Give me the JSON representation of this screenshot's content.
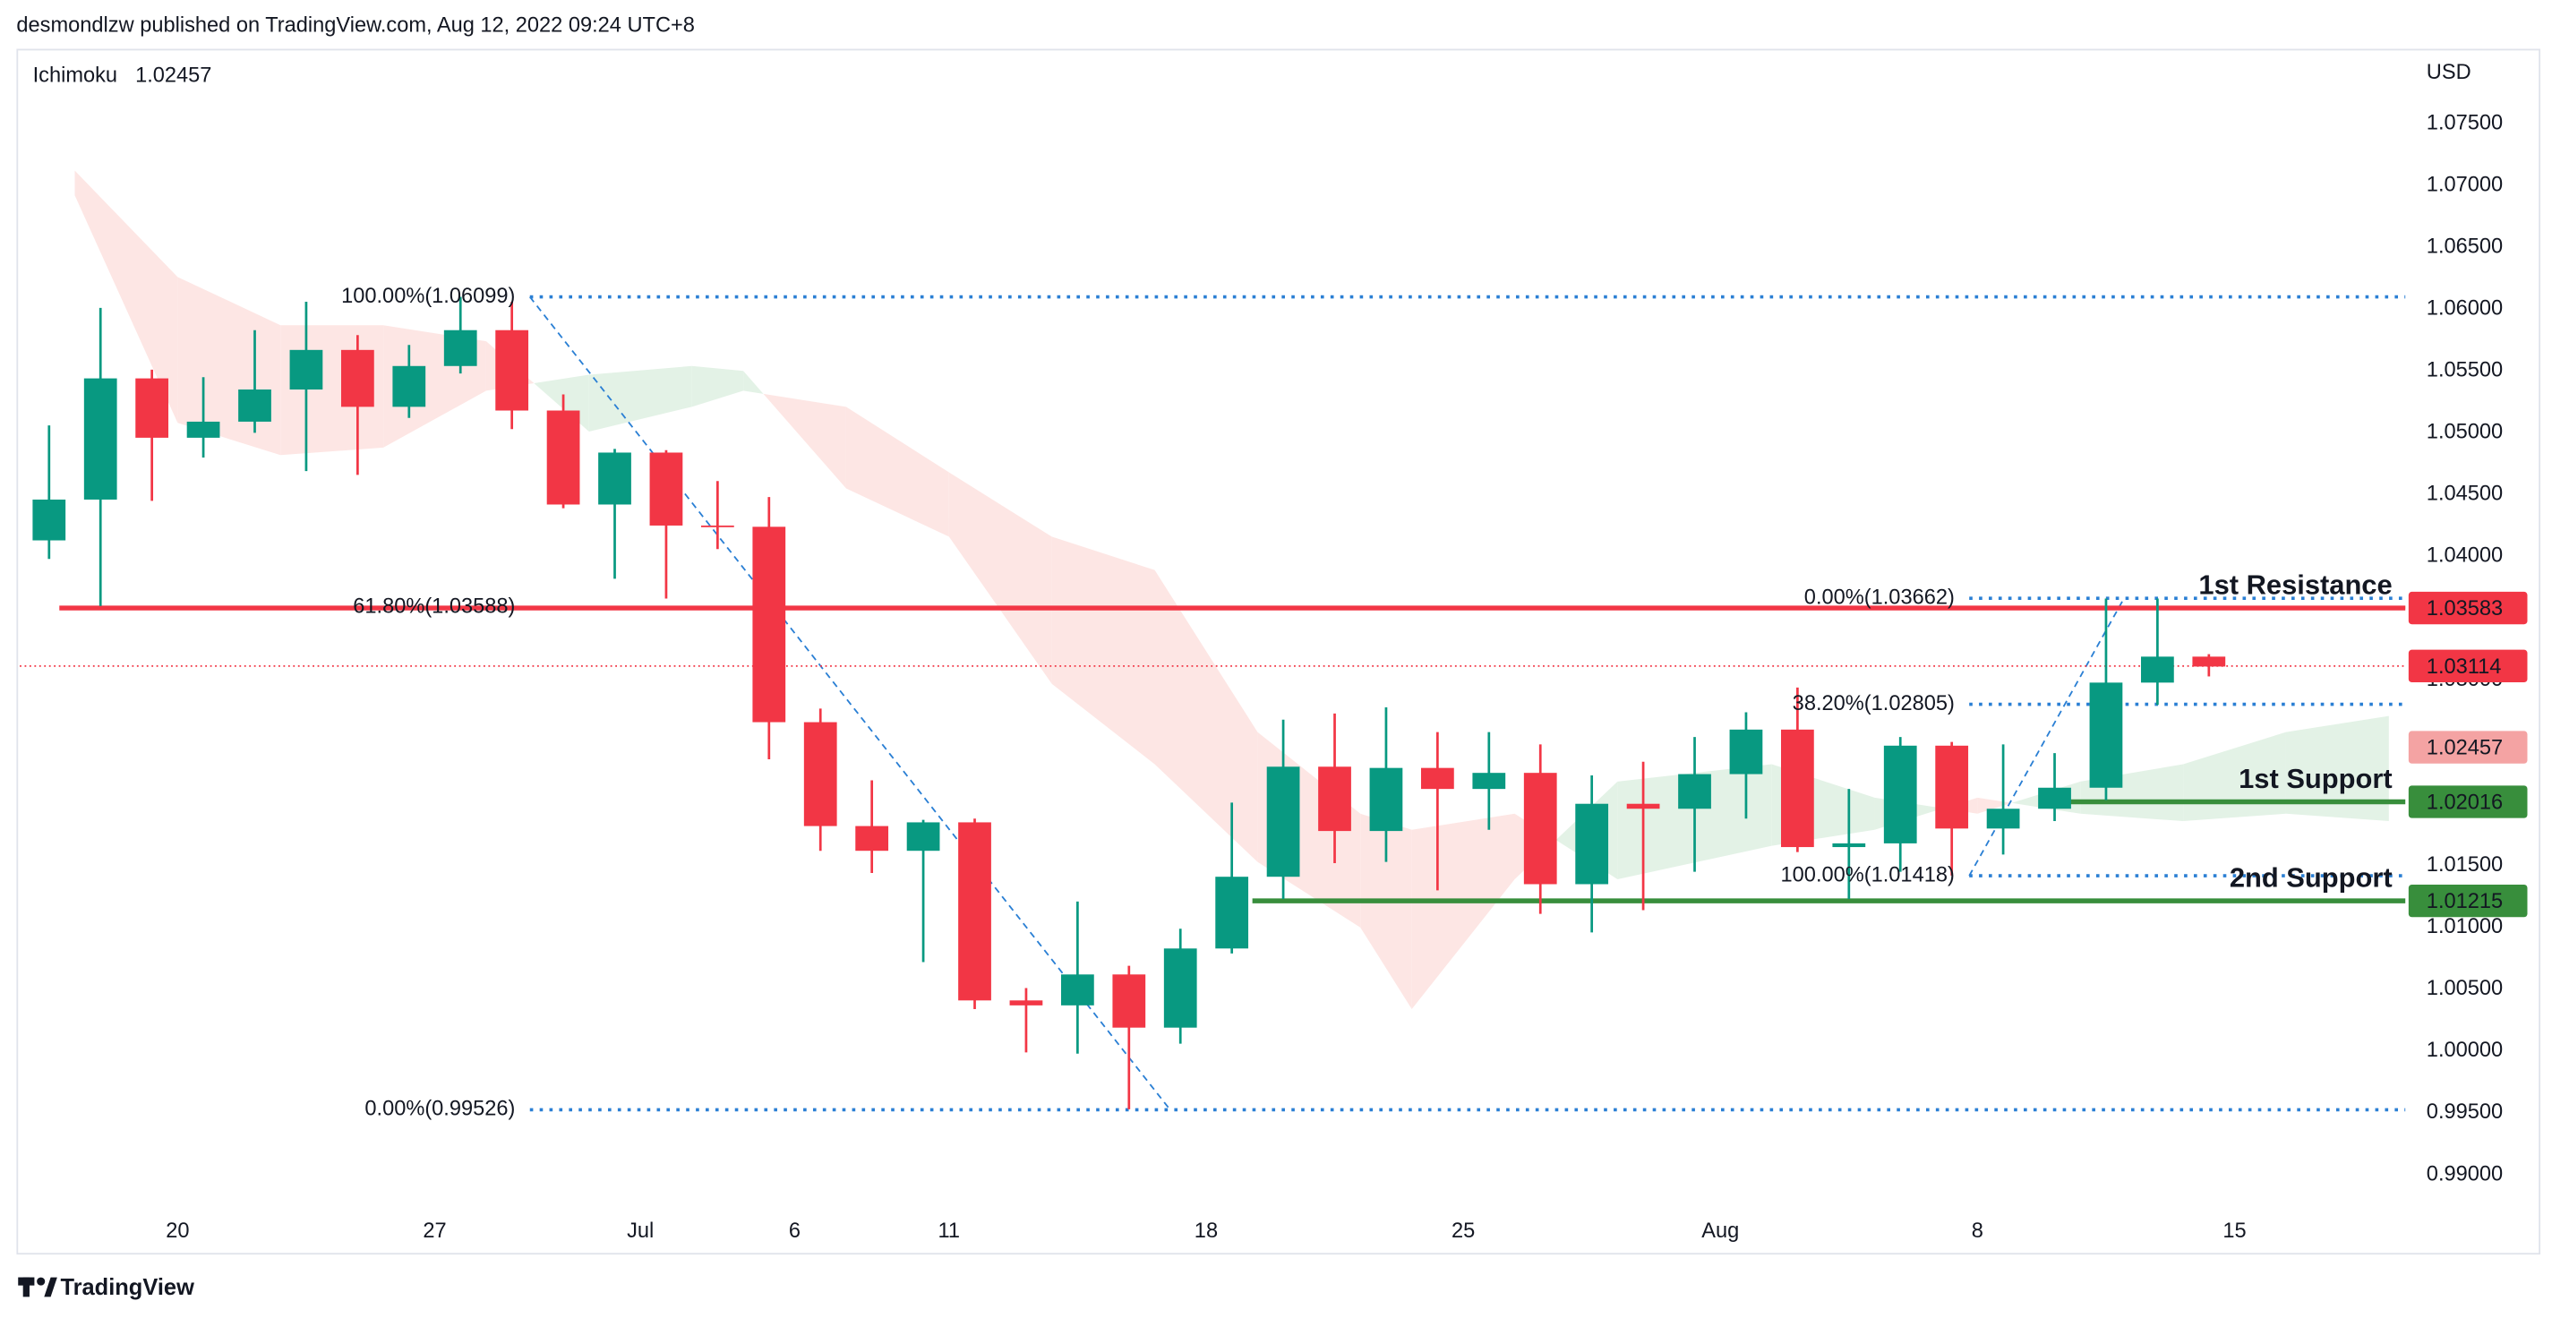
{
  "header": {
    "author_line": "desmondlzw published on TradingView.com, Aug 12, 2022 09:24 UTC+8"
  },
  "chart_data": {
    "type": "candlestick",
    "indicator": {
      "name": "Ichimoku",
      "value": 1.02457,
      "color": "#f4a3a3"
    },
    "y_axis_label": "USD",
    "up_color": "#089981",
    "down_color": "#f23645",
    "x": [
      -2.5,
      -1.5,
      -0.5,
      0.5,
      1.5,
      2.5,
      3.5,
      4.5,
      5.5,
      6.5,
      7.5,
      8.5,
      9.5,
      10.5,
      11.5,
      12.5,
      13.5,
      14.5,
      15.5,
      16.5,
      17.5,
      18.5,
      19.5,
      20.5,
      21.5,
      22.5,
      23.5,
      24.5,
      25.5,
      26.5,
      27.5,
      28.5,
      29.5,
      30.5,
      31.5,
      32.5,
      33.5,
      34.5,
      35.5,
      36.5,
      37.5,
      38.5,
      39.5
    ],
    "open": [
      1.0413,
      1.0446,
      1.0544,
      1.0496,
      1.0509,
      1.0535,
      1.0567,
      1.0521,
      1.0554,
      1.0583,
      1.0518,
      1.0442,
      1.0484,
      1.0425,
      1.0424,
      1.0266,
      1.0182,
      1.0162,
      1.0185,
      1.0041,
      1.0037,
      1.0062,
      1.0019,
      1.0083,
      1.0141,
      1.023,
      1.0178,
      1.0229,
      1.0212,
      1.0225,
      1.0135,
      1.02,
      1.0196,
      1.0224,
      1.026,
      1.0165,
      1.0168,
      1.0247,
      1.018,
      1.0196,
      1.0213,
      1.0298,
      1.0319
    ],
    "high": [
      1.0506,
      1.0601,
      1.0551,
      1.0545,
      1.0583,
      1.0606,
      1.0579,
      1.0571,
      1.061,
      1.0606,
      1.0531,
      1.0487,
      1.0486,
      1.0461,
      1.0448,
      1.0277,
      1.0219,
      1.0187,
      1.0188,
      1.0051,
      1.0121,
      1.0069,
      1.0099,
      1.0201,
      1.0268,
      1.0273,
      1.0278,
      1.0258,
      1.0258,
      1.0248,
      1.0223,
      1.0234,
      1.0254,
      1.0274,
      1.0294,
      1.0212,
      1.0254,
      1.025,
      1.0248,
      1.0241,
      1.0366,
      1.0366,
      1.0321
    ],
    "low": [
      1.0398,
      1.036,
      1.0445,
      1.048,
      1.05,
      1.0469,
      1.0466,
      1.0512,
      1.0548,
      1.0503,
      1.0439,
      1.0382,
      1.0366,
      1.0406,
      1.0236,
      1.0162,
      1.0144,
      1.0072,
      1.0034,
      0.9999,
      0.9998,
      0.9953,
      1.0006,
      1.0079,
      1.0123,
      1.0152,
      1.0153,
      1.013,
      1.0179,
      1.0111,
      1.0096,
      1.0114,
      1.0145,
      1.0188,
      1.0161,
      1.0123,
      1.0145,
      1.0142,
      1.0159,
      1.0186,
      1.0203,
      1.028,
      1.0303
    ],
    "close": [
      1.0446,
      1.0544,
      1.0496,
      1.0509,
      1.0535,
      1.0567,
      1.0521,
      1.0554,
      1.0583,
      1.0518,
      1.0442,
      1.0484,
      1.0425,
      1.0424,
      1.0266,
      1.0182,
      1.0162,
      1.0185,
      1.0041,
      1.0037,
      1.0062,
      1.0019,
      1.0083,
      1.0141,
      1.023,
      1.0178,
      1.0229,
      1.0212,
      1.0225,
      1.0135,
      1.02,
      1.0196,
      1.0224,
      1.026,
      1.0165,
      1.0168,
      1.0247,
      1.018,
      1.0196,
      1.0213,
      1.0298,
      1.0319,
      1.0311
    ],
    "xlim": [
      -3.07,
      43.32
    ],
    "xticks": [
      {
        "value": 0,
        "label": "20"
      },
      {
        "value": 5,
        "label": "27"
      },
      {
        "value": 9,
        "label": "Jul"
      },
      {
        "value": 12,
        "label": "6"
      },
      {
        "value": 15,
        "label": "11"
      },
      {
        "value": 20,
        "label": "18"
      },
      {
        "value": 25,
        "label": "25"
      },
      {
        "value": 30,
        "label": "Aug"
      },
      {
        "value": 35,
        "label": "8"
      },
      {
        "value": 40,
        "label": "15"
      }
    ],
    "ylim": [
      0.98763,
      1.08105
    ],
    "yticks": [
      {
        "value": 0.99,
        "label": "0.99000"
      },
      {
        "value": 0.995,
        "label": "0.99500"
      },
      {
        "value": 1.0,
        "label": "1.00000"
      },
      {
        "value": 1.005,
        "label": "1.00500"
      },
      {
        "value": 1.01,
        "label": "1.01000"
      },
      {
        "value": 1.015,
        "label": "1.01500"
      },
      {
        "value": 1.02,
        "label": "1.02000"
      },
      {
        "value": 1.025,
        "label": "1.02500"
      },
      {
        "value": 1.03,
        "label": "1.03000"
      },
      {
        "value": 1.035,
        "label": "1.03500"
      },
      {
        "value": 1.04,
        "label": "1.04000"
      },
      {
        "value": 1.045,
        "label": "1.04500"
      },
      {
        "value": 1.05,
        "label": "1.05000"
      },
      {
        "value": 1.055,
        "label": "1.05500"
      },
      {
        "value": 1.06,
        "label": "1.06000"
      },
      {
        "value": 1.065,
        "label": "1.06500"
      },
      {
        "value": 1.07,
        "label": "1.07000"
      },
      {
        "value": 1.075,
        "label": "1.07500"
      }
    ],
    "last_price": 1.03114,
    "cloud": {
      "up_color": "#e3f2e6",
      "down_color": "#fde6e4",
      "x": [
        -2,
        0,
        2,
        4,
        6,
        8,
        10,
        11,
        13,
        15,
        17,
        19,
        21,
        23,
        24,
        26,
        28,
        31,
        33,
        35,
        37,
        39,
        41,
        43
      ],
      "span_a": [
        1.0692,
        1.0508,
        1.0482,
        1.0488,
        1.0534,
        1.0547,
        1.0554,
        1.055,
        1.0455,
        1.0416,
        1.0297,
        1.0232,
        1.0153,
        1.01,
        1.0034,
        1.0139,
        1.0218,
        1.0232,
        1.0205,
        1.0192,
        1.0218,
        1.0232,
        1.0258,
        1.0271
      ],
      "span_b": [
        1.0712,
        1.0626,
        1.0587,
        1.0587,
        1.0574,
        1.0501,
        1.0521,
        1.0534,
        1.0521,
        1.0468,
        1.0416,
        1.0389,
        1.0258,
        1.0192,
        1.0179,
        1.0192,
        1.0139,
        1.0166,
        1.0179,
        1.0205,
        1.0192,
        1.0186,
        1.0192,
        1.0186
      ]
    },
    "levels": [
      {
        "name": "1st Resistance",
        "value": 1.03583,
        "start": -2.3,
        "color": "#f23645"
      },
      {
        "name": "1st Support",
        "value": 1.02016,
        "start": 36.7,
        "color": "#388e3c"
      },
      {
        "name": "2nd Support",
        "value": 1.01215,
        "start": 20.9,
        "color": "#388e3c"
      }
    ],
    "fibs": [
      {
        "start": 6.85,
        "end": 19.3,
        "levels": [
          {
            "value": 1.06099,
            "label": "100.00%(1.06099)",
            "color": "#2a7fd4"
          },
          {
            "value": 1.03588,
            "label": "61.80%(1.03588)",
            "color": "#f5a623"
          },
          {
            "value": 0.99526,
            "label": "0.00%(0.99526)",
            "color": "#2a7fd4"
          }
        ]
      },
      {
        "start": 34.84,
        "end": 37.85,
        "levels": [
          {
            "value": 1.01418,
            "label": "100.00%(1.01418)",
            "color": "#2a7fd4"
          },
          {
            "value": 1.02805,
            "label": "38.20%(1.02805)",
            "color": "#2a7fd4"
          },
          {
            "value": 1.03662,
            "label": "0.00%(1.03662)",
            "color": "#2a7fd4"
          }
        ]
      }
    ]
  },
  "footer": {
    "brand": "TradingView"
  }
}
